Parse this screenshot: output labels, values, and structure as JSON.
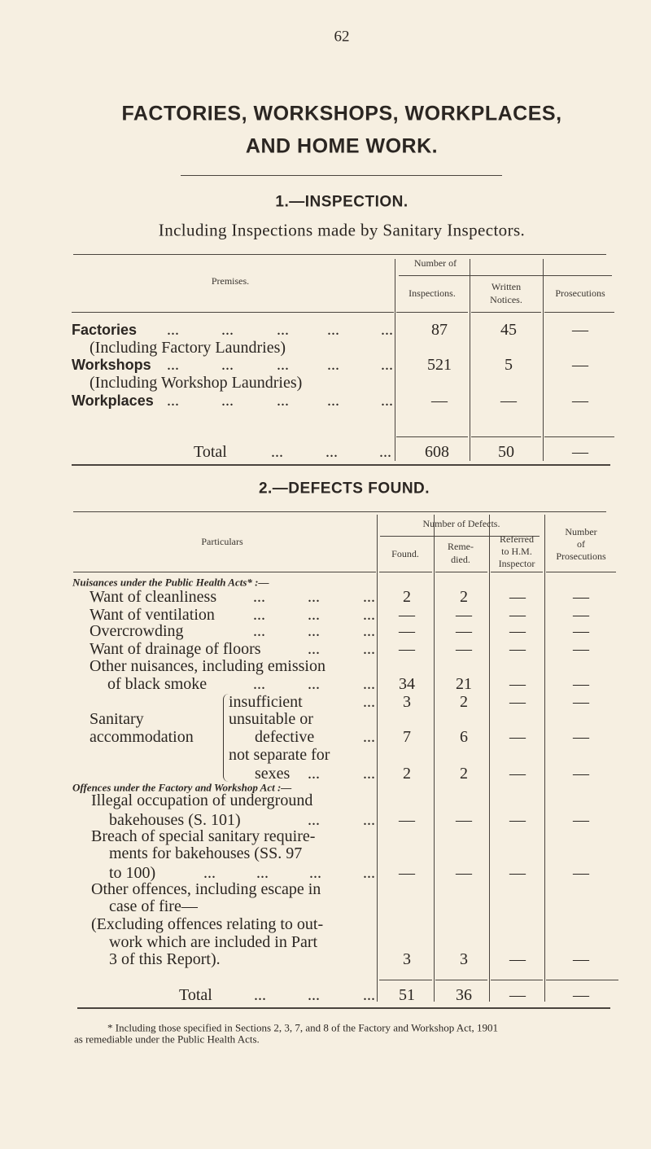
{
  "page_number": "62",
  "title_line1": "FACTORIES, WORKSHOPS, WORKPLACES,",
  "title_line2": "AND HOME WORK.",
  "leader": "...",
  "section1": {
    "heading": "1.—INSPECTION.",
    "subheading": "Including Inspections made by Sanitary Inspectors.",
    "headers": {
      "premises": "Premises.",
      "number_of": "Number of",
      "inspections": "Inspections.",
      "written_1": "Written",
      "written_2": "Notices.",
      "prosecutions": "Prosecutions"
    },
    "rows": [
      {
        "label": "Factories",
        "note": "(Including Factory Laundries)",
        "inspections": "87",
        "written_notices": "45",
        "prosecutions": "—"
      },
      {
        "label": "Workshops",
        "note": "(Including Workshop Laundries)",
        "inspections": "521",
        "written_notices": "5",
        "prosecutions": "—"
      },
      {
        "label": "Workplaces",
        "note": "",
        "inspections": "—",
        "written_notices": "—",
        "prosecutions": "—"
      }
    ],
    "total": {
      "label": "Total",
      "inspections": "608",
      "written_notices": "50",
      "prosecutions": "—"
    }
  },
  "section2": {
    "heading": "2.—DEFECTS FOUND.",
    "headers": {
      "particulars": "Particulars",
      "number_of_defects": "Number of Defects.",
      "found": "Found.",
      "remedied_1": "Reme-",
      "remedied_2": "died.",
      "referred_1": "Referred",
      "referred_2": "to H.M.",
      "referred_3": "Inspector",
      "number_1": "Number",
      "number_2": "of",
      "number_3": "Prosecutions"
    },
    "group1": "Nuisances under the Public Health Acts* :—",
    "group2": "Offences under the Factory and Workshop Act :—",
    "sanitary_1": "Sanitary",
    "sanitary_2": "accommodation",
    "lines": [
      {
        "text": "Want of cleanliness",
        "values": [
          "2",
          "2",
          "—",
          "—"
        ]
      },
      {
        "text": "Want of ventilation",
        "values": [
          "—",
          "—",
          "—",
          "—"
        ]
      },
      {
        "text": "Overcrowding",
        "values": [
          "—",
          "—",
          "—",
          "—"
        ]
      },
      {
        "text": "Want of drainage of floors",
        "values": [
          "—",
          "—",
          "—",
          "—"
        ]
      },
      {
        "text": "Other nuisances, including emission"
      },
      {
        "text": "of black smoke",
        "values": [
          "34",
          "21",
          "—",
          "—"
        ]
      },
      {
        "text": "insufficient",
        "values": [
          "3",
          "2",
          "—",
          "—"
        ]
      },
      {
        "text": "unsuitable or"
      },
      {
        "text": "defective",
        "values": [
          "7",
          "6",
          "—",
          "—"
        ]
      },
      {
        "text": "not separate for"
      },
      {
        "text": "sexes",
        "values": [
          "2",
          "2",
          "—",
          "—"
        ]
      },
      {
        "text": "Illegal occupation of underground"
      },
      {
        "text": "bakehouses (S. 101)",
        "values": [
          "—",
          "—",
          "—",
          "—"
        ]
      },
      {
        "text": "Breach of special sanitary require-"
      },
      {
        "text": "ments for bakehouses (SS. 97"
      },
      {
        "text": "to 100)",
        "values": [
          "—",
          "—",
          "—",
          "—"
        ]
      },
      {
        "text": "Other offences, including escape in"
      },
      {
        "text": "case of fire—"
      },
      {
        "text": "(Excluding offences relating to out-"
      },
      {
        "text": "work which are included in Part"
      },
      {
        "text": "3 of this Report).",
        "values": [
          "3",
          "3",
          "—",
          "—"
        ]
      }
    ],
    "total": {
      "label": "Total",
      "values": [
        "51",
        "36",
        "—",
        "—"
      ]
    }
  },
  "footnote_line1": "* Including those specified in Sections 2, 3, 7, and 8 of the Factory and Workshop Act, 1901",
  "footnote_line2": "as remediable under the Public Health Acts."
}
